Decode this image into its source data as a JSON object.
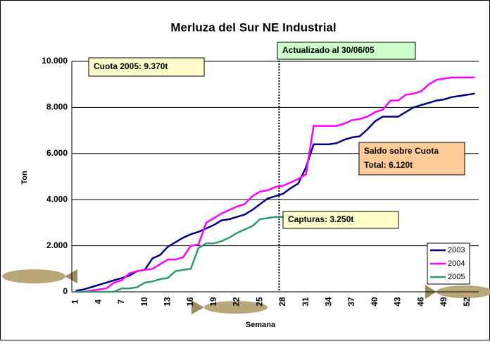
{
  "chart_data": {
    "type": "line",
    "title": "Merluza del Sur NE Industrial",
    "x_label": "Semana",
    "y_label": "Ton",
    "categories": [
      1,
      null,
      null,
      4,
      null,
      null,
      7,
      null,
      null,
      10,
      null,
      null,
      13,
      null,
      null,
      16,
      null,
      null,
      19,
      null,
      null,
      22,
      null,
      null,
      25,
      null,
      null,
      28,
      null,
      null,
      31,
      null,
      null,
      34,
      null,
      null,
      37,
      null,
      null,
      40,
      null,
      null,
      43,
      null,
      null,
      46,
      null,
      null,
      49,
      null,
      null,
      52,
      null
    ],
    "series": [
      {
        "name": "2003",
        "color": "#000080",
        "values": [
          50,
          100,
          200,
          300,
          400,
          500,
          600,
          700,
          900,
          950,
          1450,
          1600,
          1950,
          2150,
          2350,
          2500,
          2600,
          2750,
          2900,
          3100,
          3150,
          3250,
          3350,
          3550,
          3800,
          4050,
          4150,
          4250,
          4500,
          4700,
          5400,
          6400,
          6400,
          6400,
          6450,
          6600,
          6700,
          6750,
          7050,
          7400,
          7600,
          7600,
          7600,
          7800,
          8000,
          8100,
          8200,
          8300,
          8350,
          8450,
          8500,
          8550,
          8600
        ]
      },
      {
        "name": "2004",
        "color": "#ff00ff",
        "values": [
          0,
          0,
          50,
          100,
          150,
          400,
          500,
          800,
          900,
          950,
          1000,
          1200,
          1400,
          1400,
          1500,
          2000,
          2050,
          3000,
          3200,
          3400,
          3550,
          3700,
          3800,
          4150,
          4350,
          4400,
          4550,
          4600,
          4750,
          4900,
          5100,
          7200,
          7200,
          7200,
          7200,
          7300,
          7450,
          7500,
          7600,
          7800,
          7900,
          8300,
          8300,
          8550,
          8600,
          8700,
          9000,
          9200,
          9250,
          9300,
          9300,
          9300,
          9300
        ]
      },
      {
        "name": "2005",
        "color": "#339966",
        "values": [
          0,
          0,
          0,
          0,
          0,
          0,
          150,
          150,
          200,
          400,
          450,
          550,
          600,
          900,
          950,
          1000,
          1900,
          2100,
          2100,
          2200,
          2350,
          2550,
          2700,
          2850,
          3150,
          3200,
          3250,
          3250,
          null,
          null,
          null,
          null,
          null,
          null,
          null,
          null,
          null,
          null,
          null,
          null,
          null,
          null,
          null,
          null,
          null,
          null,
          null,
          null,
          null,
          null,
          null,
          null,
          null
        ]
      }
    ],
    "ylim": [
      0,
      10000
    ],
    "yticks": [
      {
        "value": 0,
        "label": "0"
      },
      {
        "value": 2000,
        "label": "2.000"
      },
      {
        "value": 4000,
        "label": "4.000"
      },
      {
        "value": 6000,
        "label": "6.000"
      },
      {
        "value": 8000,
        "label": "8.000"
      },
      {
        "value": 10000,
        "label": "10.000"
      }
    ],
    "grid": true,
    "legend": "lower right",
    "annotations": {
      "quota": "Cuota 2005: 9.370t",
      "updated": "Actualizado al 30/06/05",
      "balance": [
        "Saldo sobre Cuota",
        "Total: 6.120t"
      ],
      "catch": "Capturas: 3.250t"
    }
  }
}
